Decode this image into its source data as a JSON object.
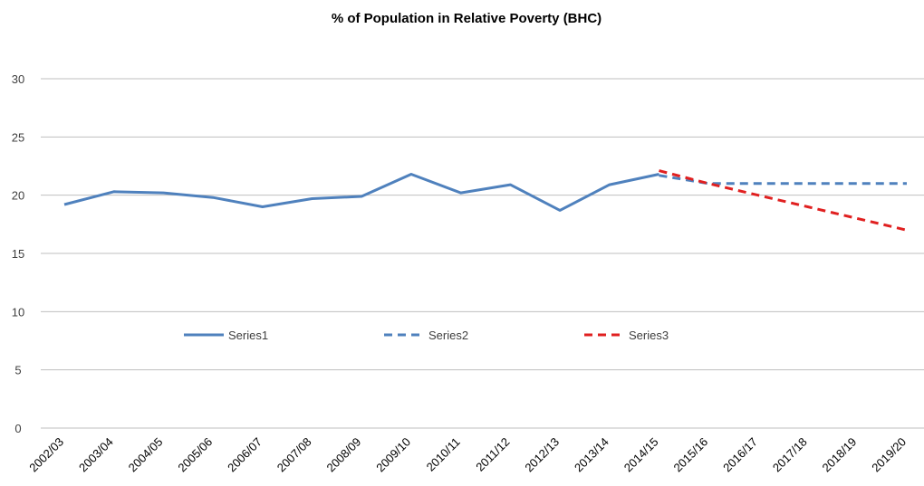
{
  "chart_data": {
    "type": "line",
    "title": "% of Population in Relative Poverty (BHC)",
    "xlabel": "",
    "ylabel": "",
    "ylim": [
      0,
      30
    ],
    "yticks": [
      0,
      5,
      10,
      15,
      20,
      25,
      30
    ],
    "grid": true,
    "legend": "middle",
    "categories": [
      "2002/03",
      "2003/04",
      "2004/05",
      "2005/06",
      "2006/07",
      "2007/08",
      "2008/09",
      "2009/10",
      "2010/11",
      "2011/12",
      "2012/13",
      "2013/14",
      "2014/15",
      "2015/16",
      "2016/17",
      "2017/18",
      "2018/19",
      "2019/20"
    ],
    "series": [
      {
        "name": "Series1",
        "color": "#4f81bd",
        "dash": "solid",
        "values": [
          19.2,
          20.3,
          20.2,
          19.8,
          19.0,
          19.7,
          19.9,
          21.8,
          20.2,
          20.9,
          18.7,
          20.9,
          21.8,
          null,
          null,
          null,
          null,
          null
        ]
      },
      {
        "name": "Series2",
        "color": "#4f81bd",
        "dash": "dashed",
        "values": [
          null,
          null,
          null,
          null,
          null,
          null,
          null,
          null,
          null,
          null,
          null,
          null,
          21.7,
          21.0,
          21.0,
          21.0,
          21.0,
          21.0
        ]
      },
      {
        "name": "Series3",
        "color": "#e02020",
        "dash": "dashed",
        "values": [
          null,
          null,
          null,
          null,
          null,
          null,
          null,
          null,
          null,
          null,
          null,
          null,
          22.1,
          21.0,
          20.0,
          19.0,
          18.0,
          17.0
        ]
      }
    ]
  }
}
